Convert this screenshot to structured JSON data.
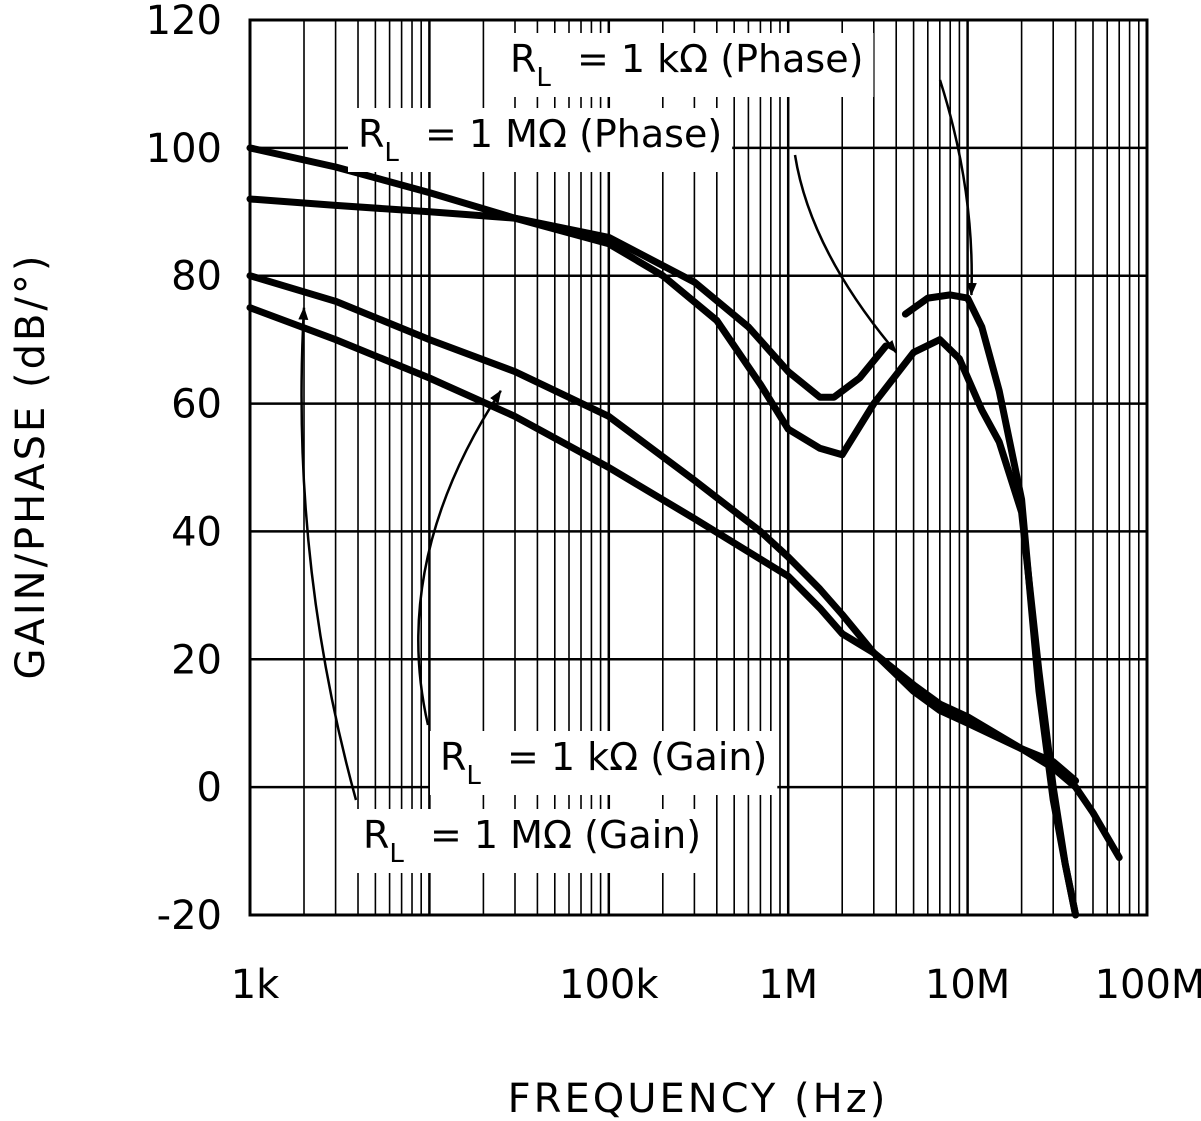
{
  "chart_data": {
    "type": "line",
    "title": "",
    "xlabel": "FREQUENCY (Hz)",
    "ylabel": "GAIN/PHASE (dB/°)",
    "x_scale": "log10",
    "xlim": [
      1000,
      100000000
    ],
    "ylim": [
      -20,
      120
    ],
    "grid": true,
    "x_ticks": [
      {
        "value": 1000,
        "label": "1k"
      },
      {
        "value": 100000,
        "label": "100k"
      },
      {
        "value": 1000000,
        "label": "1M"
      },
      {
        "value": 10000000,
        "label": "10M"
      },
      {
        "value": 100000000,
        "label": "100M"
      }
    ],
    "y_ticks": [
      {
        "value": 120,
        "label": "120"
      },
      {
        "value": 100,
        "label": "100"
      },
      {
        "value": 80,
        "label": "80"
      },
      {
        "value": 60,
        "label": "60"
      },
      {
        "value": 40,
        "label": "40"
      },
      {
        "value": 20,
        "label": "20"
      },
      {
        "value": 0,
        "label": "0"
      },
      {
        "value": -20,
        "label": "-20"
      }
    ],
    "series": [
      {
        "name": "RL = 1 kΩ (Phase)",
        "label_main": "R",
        "label_sub": "L",
        "label_rest": "= 1 kΩ (Phase)",
        "arrow_to": [
          10500000,
          77
        ],
        "x": [
          1000,
          3000,
          10000,
          30000,
          100000,
          300000,
          600000,
          1000000,
          1500000,
          1800000,
          2500000,
          3500000
        ],
        "y": [
          92,
          91,
          90,
          89,
          86,
          79,
          72,
          65,
          61,
          61,
          64,
          69
        ],
        "x2": [
          4500000,
          6000000,
          8000000,
          10000000,
          12000000,
          15000000,
          20000000,
          25000000,
          30000000,
          35000000,
          40000000
        ],
        "y2": [
          74,
          76.5,
          77,
          76.5,
          72,
          62,
          45,
          15,
          -2,
          -12,
          -20
        ]
      },
      {
        "name": "RL = 1 MΩ (Phase)",
        "label_main": "R",
        "label_sub": "L",
        "label_rest": "= 1 MΩ (Phase)",
        "arrow_to": [
          4000000,
          68
        ],
        "x": [
          1000,
          3000,
          10000,
          30000,
          100000,
          200000,
          400000,
          700000,
          1000000,
          1500000,
          2000000,
          3000000,
          5000000,
          7000000,
          9000000,
          12000000,
          15000000,
          20000000,
          25000000,
          30000000,
          35000000,
          40000000
        ],
        "y": [
          100,
          97,
          93,
          89,
          85,
          80,
          73,
          63,
          56,
          53,
          52,
          60,
          68,
          70,
          67,
          59,
          54,
          43,
          18,
          0,
          -12,
          -20
        ]
      },
      {
        "name": "RL = 1 kΩ (Gain)",
        "label_main": "R",
        "label_sub": "L",
        "label_rest": "= 1 kΩ (Gain)",
        "arrow_to": [
          25000,
          62
        ],
        "x": [
          1000,
          3000,
          10000,
          30000,
          100000,
          300000,
          1000000,
          1500000,
          2000000,
          3000000,
          5000000,
          7000000,
          10000000,
          20000000,
          30000000,
          40000000,
          50000000,
          70000000
        ],
        "y": [
          75,
          70,
          64,
          58,
          50,
          42,
          33,
          28,
          24,
          21,
          15,
          12,
          10,
          6,
          3,
          0,
          -4,
          -11
        ]
      },
      {
        "name": "RL = 1 MΩ (Gain)",
        "label_main": "R",
        "label_sub": "L",
        "label_rest": "= 1 MΩ (Gain)",
        "arrow_to": [
          2000,
          75
        ],
        "x": [
          1000,
          3000,
          10000,
          30000,
          100000,
          300000,
          700000,
          1000000,
          1500000,
          2000000,
          3000000,
          5000000,
          7000000,
          10000000,
          20000000,
          30000000,
          40000000
        ],
        "y": [
          80,
          76,
          70,
          65,
          58,
          48,
          40,
          36,
          31,
          27,
          21,
          16,
          13,
          11,
          6,
          4,
          1
        ]
      }
    ]
  }
}
